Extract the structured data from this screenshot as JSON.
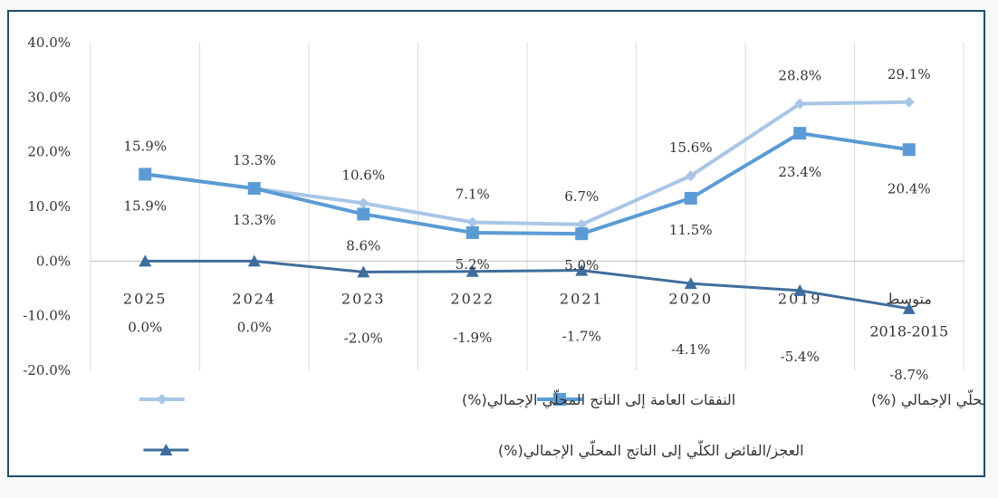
{
  "colors": {
    "expenditure": "#a9c6e6",
    "revenue": "#5b9bd5",
    "balance": "#3f6d9c",
    "grid": "#d9d9d9",
    "axis": "#bfbfbf"
  },
  "chart_data": {
    "type": "line",
    "x_direction": "right-to-left",
    "ylim": [
      -20,
      40
    ],
    "yticks": [
      "40.0%",
      "30.0%",
      "20.0%",
      "10.0%",
      "0.0%",
      "-10.0%",
      "-20.0%"
    ],
    "ytick_values": [
      40,
      30,
      20,
      10,
      0,
      -10,
      -20
    ],
    "categories": [
      "متوسط 2015-2018",
      "2019",
      "2020",
      "2021",
      "2022",
      "2023",
      "2024",
      "2025"
    ],
    "category_lines": [
      [
        "متوسط",
        "2018-2015"
      ],
      [
        "2019"
      ],
      [
        "2020"
      ],
      [
        "2021"
      ],
      [
        "2022"
      ],
      [
        "2023"
      ],
      [
        "2024"
      ],
      [
        "2025"
      ]
    ],
    "series": [
      {
        "name": "النفقات العامة إلى الناتج المحلّي الإجمالي(%)",
        "key": "expenditure",
        "marker": "diamond",
        "values": [
          29.1,
          28.8,
          15.6,
          6.7,
          7.1,
          10.6,
          13.3,
          15.9
        ],
        "labels": [
          "29.1%",
          "28.8%",
          "15.6%",
          "6.7%",
          "7.1%",
          "10.6%",
          "13.3%",
          "15.9%"
        ]
      },
      {
        "name": "الإيرادات العامة إلى الناتج المحلّي الإجمالي (%)",
        "key": "revenue",
        "marker": "square",
        "values": [
          20.4,
          23.4,
          11.5,
          5.0,
          5.2,
          8.6,
          13.3,
          15.9
        ],
        "labels": [
          "20.4%",
          "23.4%",
          "11.5%",
          "5.0%",
          "5.2%",
          "8.6%",
          "13.3%",
          "15.9%"
        ]
      },
      {
        "name": "العجز/الفائض الكلّي إلى الناتج المحلّي الإجمالي(%)",
        "key": "balance",
        "marker": "triangle",
        "values": [
          -8.7,
          -5.4,
          -4.1,
          -1.7,
          -1.9,
          -2.0,
          0.0,
          0.0
        ],
        "labels": [
          "-8.7%",
          "-5.4%",
          "-4.1%",
          "-1.7%",
          "-1.9%",
          "-2.0%",
          "0.0%",
          "0.0%"
        ]
      }
    ],
    "grid": "vertical",
    "legend": "bottom"
  }
}
